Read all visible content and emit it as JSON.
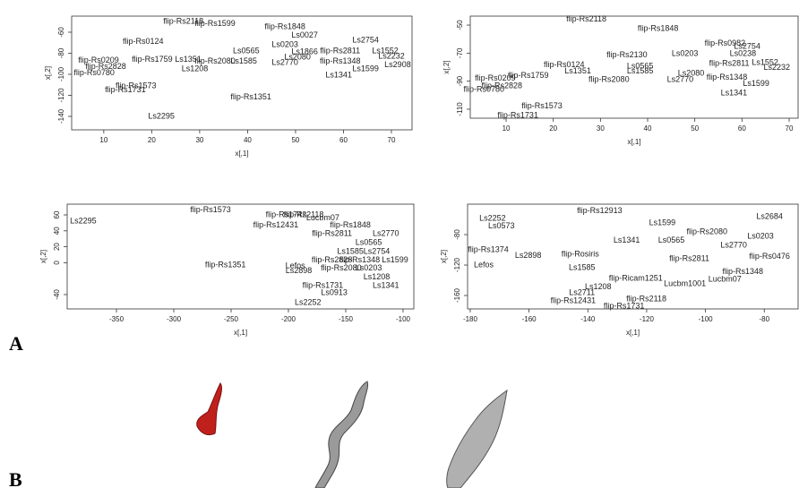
{
  "panel_labels": [
    "A",
    "B"
  ],
  "chart_data": [
    {
      "type": "scatter",
      "x_label": "x[,1]",
      "y_label": "x[,2]",
      "xlim": [
        3.3,
        74.3
      ],
      "ylim": [
        -152.8,
        -44.7
      ],
      "xticks": [
        10,
        20,
        30,
        40,
        50,
        60,
        70
      ],
      "yticks": [
        -60,
        -80,
        -100,
        -120,
        -140
      ],
      "labels": [
        "Ls2295",
        "flip-Rs1351",
        "flip-Rs1573",
        "flip-Rs1731",
        "Ls1341",
        "flip-Rs1348",
        "flip-Rs2811",
        "Ls1599",
        "Ls2908",
        "Ls2770",
        "Ls2080",
        "Ls0565",
        "Ls1585",
        "flip-Rs2080",
        "Ls1208",
        "flip-Rs2828",
        "flip-Rs0780",
        "Ls1552",
        "Ls2232",
        "flip-Rs1848",
        "Ls0203",
        "Ls2754",
        "Ls0027",
        "flip-Rs2118",
        "flip-Rs1599",
        "Ls1866",
        "flip-Rs0209",
        "flip-Rs1759",
        "flip-Rs0124",
        "Ls1351"
      ],
      "x": [
        22,
        40.7,
        16.7,
        14.5,
        59,
        59.3,
        59.3,
        64.6,
        71.3,
        47.8,
        50.4,
        39.7,
        39.2,
        33.2,
        29,
        10.4,
        8,
        68.7,
        70,
        47.8,
        47.8,
        64.6,
        51.9,
        26.6,
        33.2,
        51.9,
        8.9,
        20.1,
        18.2,
        27.6
      ],
      "y": [
        -140,
        -122,
        -111,
        -115,
        -101,
        -88,
        -78,
        -95,
        -91,
        -89,
        -84,
        -78,
        -88,
        -88,
        -95,
        -93,
        -99,
        -78,
        -83,
        -55,
        -72,
        -68,
        -63,
        -50,
        -52,
        -79,
        -87,
        -86,
        -69,
        -86
      ]
    },
    {
      "type": "scatter",
      "x_label": "x[,1]",
      "y_label": "x[,2]",
      "xlim": [
        2.4,
        71.9
      ],
      "ylim": [
        -116.4,
        -43.6
      ],
      "xticks": [
        10,
        20,
        30,
        40,
        50,
        60,
        70
      ],
      "yticks": [
        -50,
        -70,
        -90,
        -110
      ],
      "labels": [
        "flip-Rs1731",
        "flip-Rs1573",
        "Ls1341",
        "Ls1599",
        "flip-Rs1348",
        "Ls2770",
        "Ls2080",
        "flip-Rs2828",
        "flip-Rs0780",
        "flip-Rs2080",
        "flip-Rs2811",
        "Ls1552",
        "Ls2232",
        "flip-Rs1848",
        "Ls2754",
        "Ls0565",
        "Ls1585",
        "flip-Rs2118",
        "Ls1351",
        "flip-Rs0209",
        "flip-Rs1759",
        "flip-Rs0124",
        "Ls0203",
        "flip-Rs0982",
        "Ls0238",
        "flip-Rs2130"
      ],
      "x": [
        12.5,
        17.6,
        58.3,
        63,
        56.8,
        46.9,
        49.2,
        9.1,
        5.3,
        31.8,
        57.3,
        64.9,
        67.4,
        42.2,
        61.1,
        38.4,
        38.4,
        27,
        25.2,
        7.7,
        14.7,
        22.3,
        47.9,
        56.4,
        60.2,
        35.6
      ],
      "y": [
        -114.5,
        -108,
        -98.5,
        -92,
        -87.5,
        -89,
        -84.5,
        -93.5,
        -96,
        -89,
        -77.5,
        -77,
        -80.5,
        -52.5,
        -65.5,
        -79.5,
        -83,
        -46,
        -83,
        -88,
        -86,
        -78.5,
        -70.5,
        -63,
        -70.5,
        -71.5
      ]
    },
    {
      "type": "scatter",
      "x_label": "x[,1]",
      "y_label": "x[,2]",
      "xlim": [
        -393,
        -90.6
      ],
      "ylim": [
        -58,
        73.5
      ],
      "xticks": [
        -350,
        -300,
        -250,
        -200,
        -150,
        -100
      ],
      "yticks": [
        60,
        40,
        20,
        0,
        -40
      ],
      "labels": [
        "Ls2295",
        "flip-Rs1573",
        "flip-Rs1351",
        "Lefos",
        "flip-Rs12431",
        "flip-Rs1742",
        "flip-Rs2118",
        "Ls2252",
        "Ls0913",
        "Ls2898",
        "Lucbm07",
        "Ls1585",
        "Ls0565",
        "flip-Rs2080",
        "Ls1208",
        "flip-Rs1348",
        "Ls1341",
        "flip-Rs2811",
        "Ls2770",
        "Ls1599",
        "flip-Rs1731",
        "flip-Rs1848",
        "Ls2754",
        "flip-Rs2828",
        "Ls0203"
      ],
      "x": [
        -379,
        -268,
        -255,
        -194,
        -211,
        -202,
        -186.7,
        -183,
        -160,
        -191,
        -170,
        -146,
        -130,
        -154,
        -123,
        -138,
        -115,
        -162,
        -115,
        -107,
        -170,
        -146,
        -123,
        -162,
        -130
      ],
      "y": [
        52,
        66,
        -3,
        -4,
        47,
        60,
        60,
        -50,
        -38,
        -10.5,
        56,
        14,
        25,
        -7,
        -18,
        3,
        -29,
        36,
        36,
        3,
        -29,
        47,
        14,
        3,
        -7
      ]
    },
    {
      "type": "scatter",
      "x_label": "x[,1]",
      "y_label": "x[,2]",
      "xlim": [
        -180.9,
        -68.5
      ],
      "ylim": [
        -177.6,
        -40
      ],
      "xticks": [
        -180,
        -160,
        -140,
        -120,
        -100,
        -80
      ],
      "yticks": [
        -80,
        -120,
        -160
      ],
      "labels": [
        "flip-Rs1731",
        "flip-Rs2118",
        "flip-Rs12431",
        "Ls2711",
        "Ls1208",
        "Lefos",
        "Lucbm1001",
        "flip-Rosiris",
        "flip-Ricam1251",
        "Ls2252",
        "Ls0573",
        "flip-Rs12913",
        "Ls2898",
        "flip-Rs1348",
        "Ls2684",
        "flip-Rs0476",
        "Lucbm07",
        "Ls1585",
        "flip-Rs1374",
        "Ls0565",
        "flip-Rs2080",
        "Ls2770",
        "Ls1341",
        "Ls0203",
        "flip-Rs2811",
        "Ls1599"
      ],
      "x": [
        -127.7,
        -120.1,
        -145,
        -142,
        -136.5,
        -175.4,
        -107,
        -142.6,
        -123.7,
        -172.4,
        -169.4,
        -136,
        -160.3,
        -87.3,
        -78.2,
        -78.2,
        -93.4,
        -142,
        -173.9,
        -111.6,
        -99.5,
        -90.4,
        -126.8,
        -81.3,
        -105.5,
        -114.7
      ],
      "y": [
        -174,
        -165,
        -167,
        -156.5,
        -149,
        -120,
        -145,
        -106,
        -137.6,
        -59,
        -69,
        -49,
        -108,
        -129,
        -56.5,
        -109,
        -139,
        -123.5,
        -100,
        -88,
        -76.5,
        -94,
        -88,
        -82.5,
        -112,
        -64.7
      ]
    }
  ]
}
